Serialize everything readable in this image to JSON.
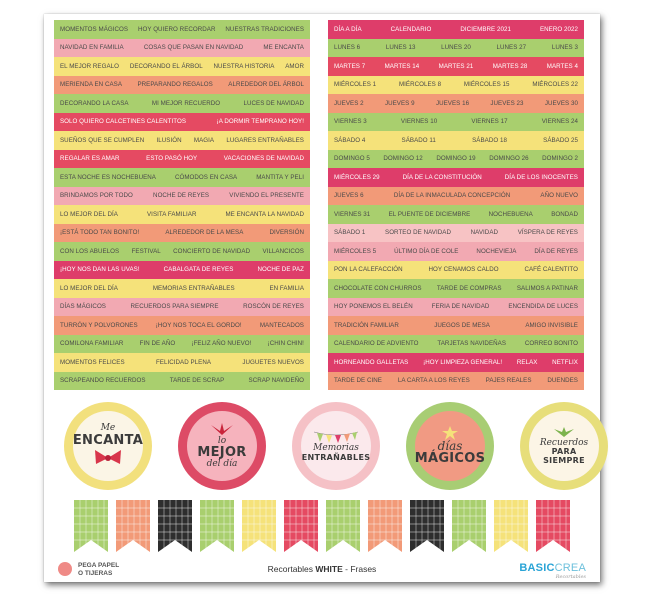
{
  "left_strips": [
    {
      "color": "green",
      "items": [
        "MOMENTOS MÁGICOS",
        "HOY QUIERO RECORDAR",
        "NUESTRAS TRADICIONES"
      ]
    },
    {
      "color": "pink",
      "items": [
        "NAVIDAD EN FAMILIA",
        "COSAS QUE PASAN EN NAVIDAD",
        "ME ENCANTA"
      ]
    },
    {
      "color": "yellow",
      "items": [
        "EL MEJOR REGALO",
        "DECORANDO EL ÁRBOL",
        "NUESTRA HISTORIA",
        "AMOR"
      ]
    },
    {
      "color": "salmon",
      "items": [
        "MERIENDA EN CASA",
        "PREPARANDO REGALOS",
        "ALREDEDOR DEL ÁRBOL"
      ]
    },
    {
      "color": "green",
      "items": [
        "DECORANDO LA CASA",
        "MI MEJOR RECUERDO",
        "LUCES DE NAVIDAD"
      ]
    },
    {
      "color": "red",
      "items": [
        "SOLO QUIERO CALCETINES CALENTITOS",
        "¡A DORMIR TEMPRANO HOY!"
      ]
    },
    {
      "color": "yellow",
      "items": [
        "SUEÑOS QUE SE CUMPLEN",
        "ILUSIÓN",
        "MAGIA",
        "LUGARES ENTRAÑABLES"
      ]
    },
    {
      "color": "red",
      "items": [
        "REGALAR ES AMAR",
        "ESTO PASÓ HOY",
        "VACACIONES DE NAVIDAD"
      ]
    },
    {
      "color": "green",
      "items": [
        "ESTA NOCHE ES NOCHEBUENA",
        "CÓMODOS EN CASA",
        "MANTITA Y PELI"
      ]
    },
    {
      "color": "pink",
      "items": [
        "BRINDAMOS POR TODO",
        "NOCHE DE REYES",
        "VIVIENDO EL PRESENTE"
      ]
    },
    {
      "color": "yellow",
      "items": [
        "LO MEJOR DEL DÍA",
        "VISITA FAMILIAR",
        "ME ENCANTA LA NAVIDAD"
      ]
    },
    {
      "color": "salmon",
      "items": [
        "¡ESTÁ TODO TAN BONITO!",
        "ALREDEDOR DE LA MESA",
        "DIVERSIÓN"
      ]
    },
    {
      "color": "green",
      "items": [
        "CON LOS ABUELOS",
        "FESTIVAL",
        "CONCIERTO DE NAVIDAD",
        "VILLANCICOS"
      ]
    },
    {
      "color": "magenta",
      "items": [
        "¡HOY NOS DAN LAS UVAS!",
        "CABALGATA DE REYES",
        "NOCHE DE PAZ"
      ]
    },
    {
      "color": "yellow",
      "items": [
        "LO MEJOR DEL DÍA",
        "MEMORIAS ENTRAÑABLES",
        "EN FAMILIA"
      ]
    },
    {
      "color": "pink",
      "items": [
        "DÍAS MÁGICOS",
        "RECUERDOS PARA SIEMPRE",
        "ROSCÓN DE REYES"
      ]
    },
    {
      "color": "salmon",
      "items": [
        "TURRÓN Y POLVORONES",
        "¡HOY NOS TOCA EL GORDO!",
        "MANTECADOS"
      ]
    },
    {
      "color": "green",
      "items": [
        "COMILONA FAMILIAR",
        "FIN DE AÑO",
        "¡FELIZ AÑO NUEVO!",
        "¡CHIN CHIN!"
      ]
    },
    {
      "color": "yellow",
      "items": [
        "MOMENTOS FELICES",
        "FELICIDAD PLENA",
        "JUGUETES NUEVOS"
      ]
    },
    {
      "color": "green",
      "items": [
        "SCRAPEANDO RECUERDOS",
        "TARDE DE SCRAP",
        "SCRAP NAVIDEÑO"
      ]
    }
  ],
  "right_strips": [
    {
      "color": "magenta",
      "items": [
        "DÍA A DÍA",
        "CALENDARIO",
        "DICIEMBRE 2021",
        "ENERO 2022"
      ]
    },
    {
      "color": "green",
      "items": [
        "LUNES 6",
        "LUNES 13",
        "LUNES 20",
        "LUNES 27",
        "LUNES 3"
      ]
    },
    {
      "color": "red",
      "items": [
        "MARTES 7",
        "MARTES 14",
        "MARTES 21",
        "MARTES 28",
        "MARTES 4"
      ]
    },
    {
      "color": "yellow",
      "items": [
        "MIÉRCOLES 1",
        "MIÉRCOLES 8",
        "MIÉRCOLES 15",
        "MIÉRCOLES 22"
      ]
    },
    {
      "color": "salmon",
      "items": [
        "JUEVES 2",
        "JUEVES 9",
        "JUEVES 16",
        "JUEVES 23",
        "JUEVES 30"
      ]
    },
    {
      "color": "green",
      "items": [
        "VIERNES 3",
        "VIERNES 10",
        "VIERNES 17",
        "VIERNES 24"
      ]
    },
    {
      "color": "yellow",
      "items": [
        "SÁBADO 4",
        "SÁBADO 11",
        "SÁBADO 18",
        "SÁBADO 25"
      ]
    },
    {
      "color": "green",
      "items": [
        "DOMINGO 5",
        "DOMINGO 12",
        "DOMINGO 19",
        "DOMINGO 26",
        "DOMINGO 2"
      ]
    },
    {
      "color": "magenta",
      "items": [
        "MIÉRCOLES 29",
        "DÍA DE LA CONSTITUCIÓN",
        "DÍA DE LOS INOCENTES"
      ]
    },
    {
      "color": "salmon",
      "items": [
        "JUEVES 6",
        "DÍA DE LA INMACULADA CONCEPCIÓN",
        "AÑO NUEVO"
      ]
    },
    {
      "color": "green",
      "items": [
        "VIERNES 31",
        "EL PUENTE DE DICIEMBRE",
        "NOCHEBUENA",
        "BONDAD"
      ]
    },
    {
      "color": "lpink",
      "items": [
        "SÁBADO 1",
        "SORTEO DE NAVIDAD",
        "NAVIDAD",
        "VÍSPERA DE REYES"
      ]
    },
    {
      "color": "pink",
      "items": [
        "MIÉRCOLES 5",
        "ÚLTIMO DÍA DE COLE",
        "NOCHEVIEJA",
        "DÍA DE REYES"
      ]
    },
    {
      "color": "yellow",
      "items": [
        "PON LA CALEFACCIÓN",
        "HOY CENAMOS CALDO",
        "CAFÉ CALENTITO"
      ]
    },
    {
      "color": "green",
      "items": [
        "CHOCOLATE CON CHURROS",
        "TARDE DE COMPRAS",
        "SALIMOS A PATINAR"
      ]
    },
    {
      "color": "pink",
      "items": [
        "HOY PONEMOS EL BELÉN",
        "FERIA DE NAVIDAD",
        "ENCENDIDA DE LUCES"
      ]
    },
    {
      "color": "salmon",
      "items": [
        "TRADICIÓN FAMILIAR",
        "JUEGOS DE MESA",
        "AMIGO INVISIBLE"
      ]
    },
    {
      "color": "green",
      "items": [
        "CALENDARIO DE ADVIENTO",
        "TARJETAS NAVIDEÑAS",
        "CORREO BONITO"
      ]
    },
    {
      "color": "magenta",
      "items": [
        "HORNEANDO GALLETAS",
        "¡HOY LIMPIEZA GENERAL!",
        "RELAX",
        "NETFLIX"
      ]
    },
    {
      "color": "salmon",
      "items": [
        "TARDE DE CINE",
        "LA CARTA A LOS REYES",
        "PAJES REALES",
        "DUENDES"
      ]
    }
  ],
  "badges": {
    "b1": {
      "line1": "Me",
      "line2": "ENCANTA"
    },
    "b2": {
      "line1": "lo",
      "line2": "MEJOR",
      "line3": "del día"
    },
    "b3": {
      "line1": "Memorias",
      "line2": "ENTRAÑABLES"
    },
    "b4": {
      "line1": "días",
      "line2": "MÁGICOS"
    },
    "b5": {
      "line1": "Recuerdos",
      "line2": "PARA",
      "line3": "SIEMPRE"
    }
  },
  "flags": [
    "green",
    "salmon",
    "black",
    "green",
    "yellow",
    "red",
    "green",
    "salmon",
    "black",
    "green",
    "yellow",
    "red"
  ],
  "footer": {
    "logo_line1": "PEGA PAPEL",
    "logo_line2": "O TIJERAS",
    "title_prefix": "Recortables ",
    "title_bold": "WHITE",
    "title_suffix": " - Frases",
    "brand_basic": "BASIC",
    "brand_crea": "CREA",
    "brand_sub": "Recortables"
  },
  "colors": {
    "green": "#a9cf6e",
    "pink": "#f2a9b2",
    "yellow": "#f5e27a",
    "salmon": "#f29a78",
    "red": "#e54a62",
    "magenta": "#de3d6a",
    "lpink": "#f7c3c4",
    "black": "#2e2e2e"
  }
}
